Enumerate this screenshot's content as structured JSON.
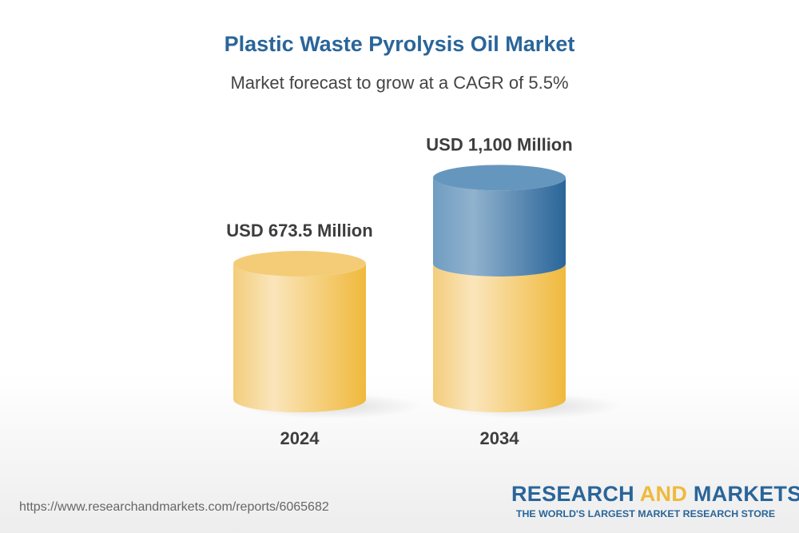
{
  "title": "Plastic Waste Pyrolysis Oil Market",
  "subtitle": "Market forecast to grow at a CAGR of 5.5%",
  "chart_data": {
    "type": "bar",
    "style": "3d-cylinder",
    "categories": [
      "2024",
      "2034"
    ],
    "values": [
      673.5,
      1100
    ],
    "unit": "USD Million",
    "data_labels": [
      "USD 673.5 Million",
      "USD 1,100 Million"
    ],
    "colors": {
      "base": "#f0b93c",
      "growth": "#2a6599"
    },
    "ylim": [
      0,
      1100
    ],
    "grid": false
  },
  "footer": {
    "url": "https://www.researchandmarkets.com/reports/6065682",
    "logo_part1": "RESEARCH ",
    "logo_part2": "AND",
    "logo_part3": " MARKETS",
    "tagline": "THE WORLD'S LARGEST MARKET RESEARCH STORE"
  }
}
